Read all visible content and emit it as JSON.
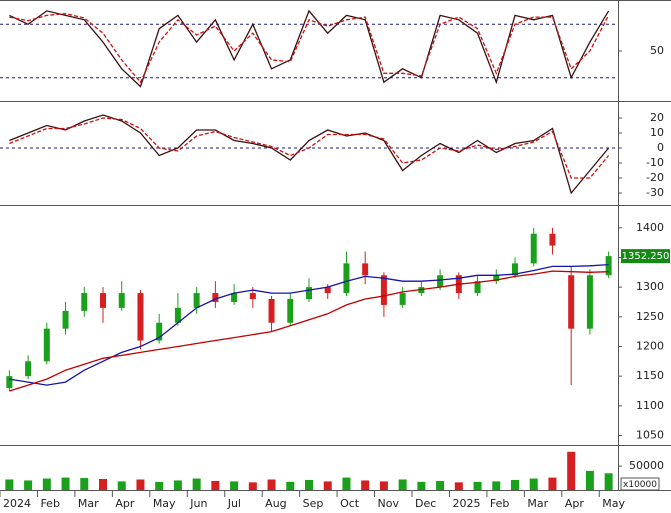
{
  "chart_data": [
    {
      "type": "line",
      "ylim": [
        -5,
        105
      ],
      "yticks": [
        50
      ],
      "ref_lines": [
        80,
        20
      ],
      "series": [
        {
          "color": "#3a1010",
          "dashed": false,
          "values": [
            90,
            80,
            95,
            90,
            85,
            60,
            30,
            10,
            75,
            90,
            60,
            85,
            40,
            80,
            30,
            40,
            95,
            70,
            90,
            85,
            15,
            30,
            20,
            90,
            85,
            70,
            15,
            90,
            85,
            90,
            20,
            60,
            95
          ]
        },
        {
          "color": "#d01010",
          "dashed": true,
          "values": [
            88,
            84,
            90,
            92,
            87,
            70,
            40,
            15,
            60,
            85,
            68,
            78,
            50,
            70,
            40,
            38,
            85,
            78,
            85,
            88,
            25,
            25,
            22,
            80,
            88,
            75,
            25,
            80,
            88,
            88,
            30,
            50,
            90
          ]
        }
      ]
    },
    {
      "type": "line",
      "ylim": [
        -38,
        30
      ],
      "yticks": [
        20,
        10,
        0,
        -10,
        -20,
        -30
      ],
      "ref_lines": [
        0
      ],
      "series": [
        {
          "color": "#3a1010",
          "dashed": false,
          "values": [
            5,
            10,
            15,
            12,
            18,
            22,
            18,
            10,
            -5,
            0,
            12,
            12,
            5,
            3,
            0,
            -8,
            5,
            12,
            8,
            10,
            5,
            -15,
            -5,
            3,
            -3,
            5,
            -3,
            3,
            5,
            13,
            -30,
            -15,
            0
          ]
        },
        {
          "color": "#d01010",
          "dashed": true,
          "values": [
            3,
            8,
            13,
            13,
            16,
            20,
            19,
            13,
            0,
            -2,
            8,
            11,
            7,
            4,
            1,
            -5,
            0,
            9,
            9,
            9,
            6,
            -10,
            -8,
            0,
            -2,
            2,
            -1,
            1,
            4,
            11,
            -20,
            -20,
            -5
          ]
        }
      ]
    },
    {
      "type": "candlestick",
      "ylim": [
        1034,
        1435
      ],
      "yticks": [
        1400,
        1350,
        1300,
        1250,
        1200,
        1150,
        1100,
        1050
      ],
      "up_color": "#1aa01a",
      "down_color": "#d42020",
      "open": [
        1130,
        1150,
        1175,
        1230,
        1260,
        1290,
        1265,
        1290,
        1210,
        1240,
        1265,
        1290,
        1275,
        1290,
        1280,
        1240,
        1280,
        1300,
        1290,
        1340,
        1320,
        1270,
        1290,
        1300,
        1320,
        1290,
        1310,
        1320,
        1340,
        1390,
        1320,
        1230,
        1320
      ],
      "high": [
        1160,
        1185,
        1240,
        1275,
        1300,
        1300,
        1310,
        1295,
        1255,
        1290,
        1300,
        1310,
        1305,
        1300,
        1285,
        1290,
        1315,
        1305,
        1360,
        1360,
        1325,
        1300,
        1310,
        1330,
        1325,
        1320,
        1330,
        1350,
        1400,
        1400,
        1335,
        1330,
        1360
      ],
      "low": [
        1125,
        1145,
        1170,
        1220,
        1250,
        1240,
        1260,
        1195,
        1205,
        1235,
        1255,
        1265,
        1270,
        1265,
        1225,
        1235,
        1275,
        1280,
        1285,
        1305,
        1250,
        1265,
        1285,
        1295,
        1280,
        1285,
        1305,
        1315,
        1335,
        1355,
        1135,
        1220,
        1315
      ],
      "close": [
        1150,
        1175,
        1230,
        1260,
        1290,
        1265,
        1290,
        1210,
        1240,
        1265,
        1290,
        1275,
        1290,
        1280,
        1240,
        1280,
        1300,
        1290,
        1340,
        1320,
        1270,
        1290,
        1300,
        1320,
        1290,
        1310,
        1320,
        1340,
        1390,
        1370,
        1230,
        1320,
        1352.25
      ],
      "last_label": {
        "value": 1352.25,
        "label": "1352.250"
      },
      "series": [
        {
          "color": "#1414a8",
          "values": [
            1145,
            1140,
            1135,
            1140,
            1160,
            1175,
            1190,
            1200,
            1215,
            1240,
            1265,
            1280,
            1290,
            1295,
            1290,
            1290,
            1295,
            1300,
            1310,
            1318,
            1315,
            1310,
            1310,
            1312,
            1315,
            1320,
            1320,
            1322,
            1328,
            1335,
            1335,
            1336,
            1338
          ]
        },
        {
          "color": "#c00000",
          "values": [
            1125,
            1135,
            1145,
            1160,
            1170,
            1180,
            1185,
            1190,
            1195,
            1200,
            1205,
            1210,
            1215,
            1220,
            1225,
            1235,
            1245,
            1255,
            1270,
            1280,
            1285,
            1292,
            1296,
            1300,
            1305,
            1308,
            1312,
            1318,
            1322,
            1327,
            1326,
            1325,
            1326
          ]
        }
      ]
    },
    {
      "type": "bar",
      "ylim": [
        0,
        90000
      ],
      "yticks": [
        50000
      ],
      "unit_label": "x10000",
      "categories": [
        "2024",
        null,
        "Feb",
        null,
        "Mar",
        null,
        "Apr",
        null,
        "May",
        null,
        "Jun",
        null,
        "Jul",
        null,
        "Aug",
        null,
        "Sep",
        null,
        "Oct",
        null,
        "Nov",
        null,
        "Dec",
        null,
        "2025",
        null,
        "Feb",
        null,
        "Mar",
        null,
        "Apr",
        null,
        "May"
      ],
      "values": [
        22000,
        20000,
        24000,
        26000,
        25000,
        23000,
        18000,
        22000,
        17000,
        20000,
        24000,
        19000,
        18000,
        16000,
        22000,
        17000,
        21000,
        18000,
        26000,
        20000,
        18000,
        22000,
        17000,
        19000,
        16000,
        17000,
        18000,
        21000,
        24000,
        26000,
        80000,
        40000,
        35000
      ]
    }
  ]
}
